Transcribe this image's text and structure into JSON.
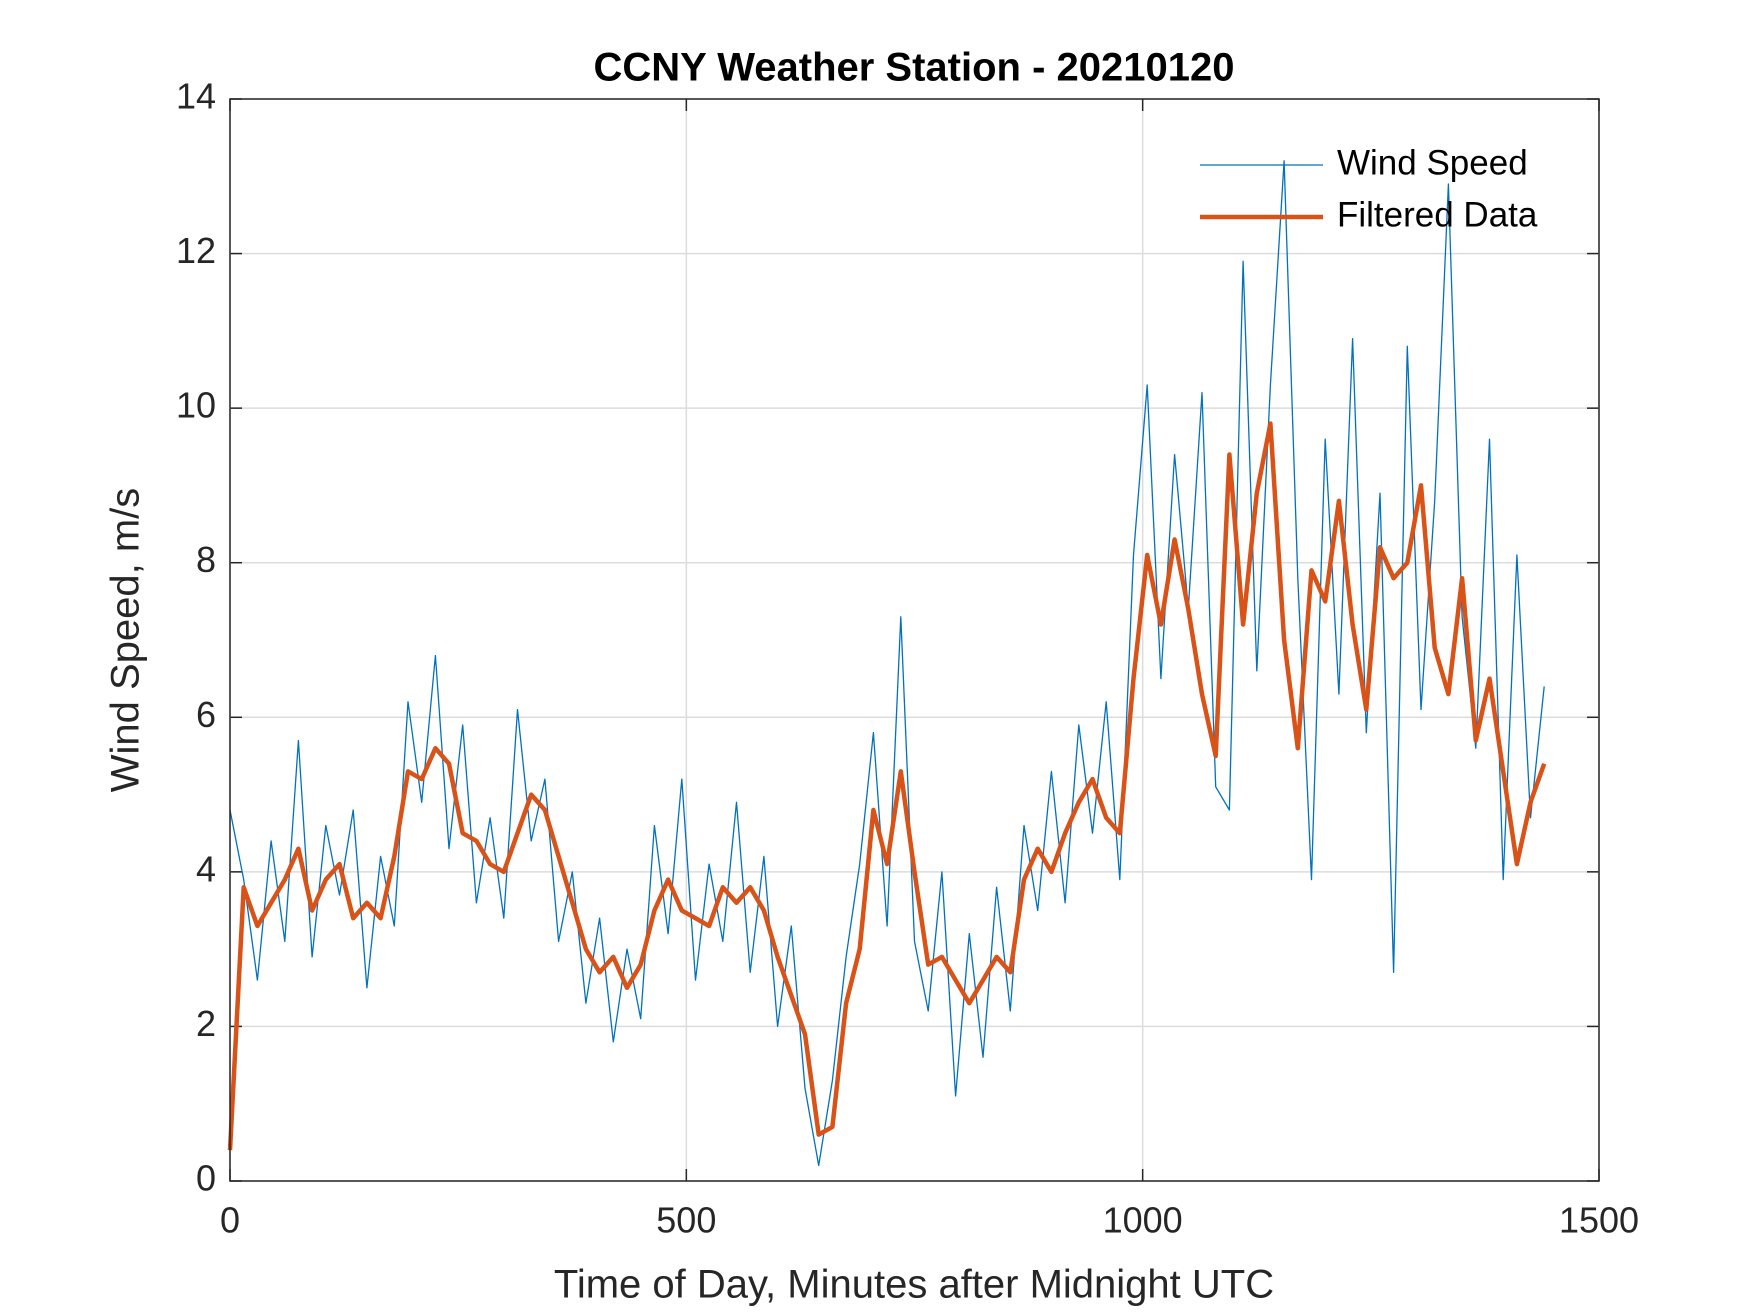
{
  "chart_data": {
    "type": "line",
    "title": "CCNY Weather Station - 20210120",
    "xlabel": "Time of Day, Minutes after Midnight UTC",
    "ylabel": "Wind Speed, m/s",
    "x": [
      0,
      15,
      30,
      45,
      60,
      75,
      90,
      105,
      120,
      135,
      150,
      165,
      180,
      195,
      210,
      225,
      240,
      255,
      270,
      285,
      300,
      315,
      330,
      345,
      360,
      375,
      390,
      405,
      420,
      435,
      450,
      465,
      480,
      495,
      510,
      525,
      540,
      555,
      570,
      585,
      600,
      615,
      630,
      645,
      660,
      675,
      690,
      705,
      720,
      735,
      750,
      765,
      780,
      795,
      810,
      825,
      840,
      855,
      870,
      885,
      900,
      915,
      930,
      945,
      960,
      975,
      990,
      1005,
      1020,
      1035,
      1050,
      1065,
      1080,
      1095,
      1110,
      1125,
      1140,
      1155,
      1170,
      1185,
      1200,
      1215,
      1230,
      1245,
      1260,
      1275,
      1290,
      1305,
      1320,
      1335,
      1350,
      1365,
      1380,
      1395,
      1410,
      1425,
      1440
    ],
    "series": [
      {
        "name": "Wind Speed",
        "color": "#0072BD",
        "width": 1.3,
        "values": [
          4.8,
          3.9,
          2.6,
          4.4,
          3.1,
          5.7,
          2.9,
          4.6,
          3.7,
          4.8,
          2.5,
          4.2,
          3.3,
          6.2,
          4.9,
          6.8,
          4.3,
          5.9,
          3.6,
          4.7,
          3.4,
          6.1,
          4.4,
          5.2,
          3.1,
          4.0,
          2.3,
          3.4,
          1.8,
          3.0,
          2.1,
          4.6,
          3.2,
          5.2,
          2.6,
          4.1,
          3.1,
          4.9,
          2.7,
          4.2,
          2.0,
          3.3,
          1.2,
          0.2,
          1.3,
          2.9,
          4.1,
          5.8,
          3.3,
          7.3,
          3.1,
          2.2,
          4.0,
          1.1,
          3.2,
          1.6,
          3.8,
          2.2,
          4.6,
          3.5,
          5.3,
          3.6,
          5.9,
          4.5,
          6.2,
          3.9,
          8.1,
          10.3,
          6.5,
          9.4,
          7.4,
          10.2,
          5.1,
          4.8,
          11.9,
          6.6,
          10.3,
          13.2,
          7.8,
          3.9,
          9.6,
          6.3,
          10.9,
          5.8,
          8.9,
          2.7,
          10.8,
          6.1,
          8.8,
          12.9,
          7.3,
          5.6,
          9.6,
          3.9,
          8.1,
          4.7,
          6.4
        ]
      },
      {
        "name": "Filtered Data",
        "color": "#D95319",
        "width": 4.5,
        "values": [
          0.4,
          3.8,
          3.3,
          3.6,
          3.9,
          4.3,
          3.5,
          3.9,
          4.1,
          3.4,
          3.6,
          3.4,
          4.2,
          5.3,
          5.2,
          5.6,
          5.4,
          4.5,
          4.4,
          4.1,
          4.0,
          4.5,
          5.0,
          4.8,
          4.2,
          3.6,
          3.0,
          2.7,
          2.9,
          2.5,
          2.8,
          3.5,
          3.9,
          3.5,
          3.4,
          3.3,
          3.8,
          3.6,
          3.8,
          3.5,
          2.9,
          2.4,
          1.9,
          0.6,
          0.7,
          2.3,
          3.0,
          4.8,
          4.1,
          5.3,
          4.0,
          2.8,
          2.9,
          2.6,
          2.3,
          2.6,
          2.9,
          2.7,
          3.9,
          4.3,
          4.0,
          4.5,
          4.9,
          5.2,
          4.7,
          4.5,
          6.5,
          8.1,
          7.2,
          8.3,
          7.4,
          6.3,
          5.5,
          9.4,
          7.2,
          8.9,
          9.8,
          7.0,
          5.6,
          7.9,
          7.5,
          8.8,
          7.2,
          6.1,
          8.2,
          7.8,
          8.0,
          9.0,
          6.9,
          6.3,
          7.8,
          5.7,
          6.5,
          5.3,
          4.1,
          4.9,
          5.4
        ]
      }
    ],
    "xlim": [
      0,
      1500
    ],
    "xticks": [
      0,
      500,
      1000,
      1500
    ],
    "ylim": [
      0,
      14
    ],
    "yticks": [
      0,
      2,
      4,
      6,
      8,
      10,
      12,
      14
    ],
    "grid": true,
    "legend": "upper right"
  }
}
